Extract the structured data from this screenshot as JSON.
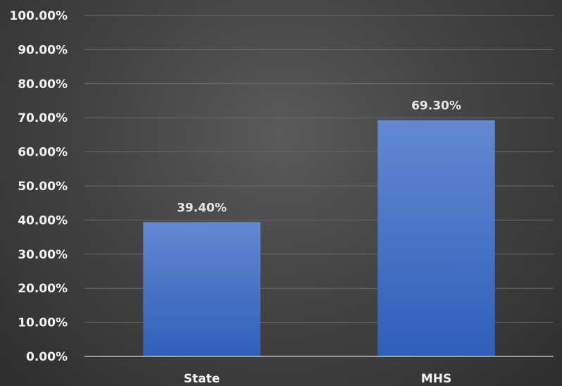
{
  "chart_data": {
    "type": "bar",
    "categories": [
      "State",
      "MHS"
    ],
    "values": [
      39.4,
      69.3
    ],
    "data_labels": [
      "39.40%",
      "69.30%"
    ],
    "ylim": [
      0,
      100
    ],
    "y_ticks": [
      0,
      10,
      20,
      30,
      40,
      50,
      60,
      70,
      80,
      90,
      100
    ],
    "y_tick_labels": [
      "0.00%",
      "10.00%",
      "20.00%",
      "30.00%",
      "40.00%",
      "50.00%",
      "60.00%",
      "70.00%",
      "80.00%",
      "90.00%",
      "100.00%"
    ],
    "title": "",
    "xlabel": "",
    "ylabel": "",
    "grid": true,
    "legend": "none",
    "colors": {
      "bar_top": "#6388d1",
      "bar_bottom": "#2f5fb9",
      "grid": "#6a6a6a",
      "axis": "#bdbdbd",
      "text": "#f2f2f2"
    }
  }
}
